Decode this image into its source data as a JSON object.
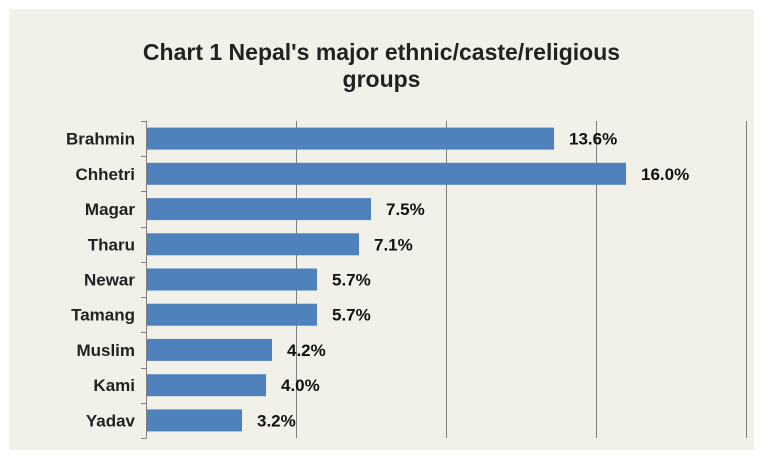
{
  "chart_data": {
    "type": "bar",
    "orientation": "horizontal",
    "title_lines": [
      "Chart 1 Nepal's major ethnic/caste/religious",
      "groups"
    ],
    "categories": [
      "Brahmin",
      "Chhetri",
      "Magar",
      "Tharu",
      "Newar",
      "Tamang",
      "Muslim",
      "Kami",
      "Yadav"
    ],
    "values": [
      13.6,
      16.0,
      7.5,
      7.1,
      5.7,
      5.7,
      4.2,
      4.0,
      3.2
    ],
    "value_labels": [
      "13.6%",
      "16.0%",
      "7.5%",
      "7.1%",
      "5.7%",
      "5.7%",
      "4.2%",
      "4.0%",
      "3.2%"
    ],
    "xlim": [
      0,
      20
    ],
    "x_gridlines": [
      5,
      10,
      15,
      20
    ],
    "xlabel": "",
    "ylabel": "",
    "legend": "none",
    "grid": true,
    "bar_color": "#4f81bd",
    "background_color": "#f1f1ea"
  }
}
